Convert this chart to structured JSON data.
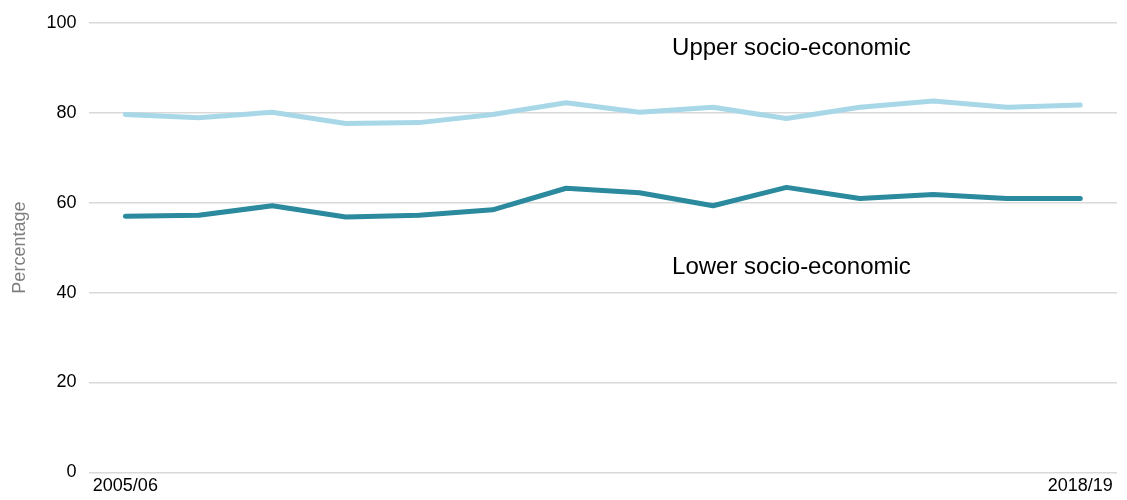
{
  "chart_data": {
    "type": "line",
    "ylabel": "Percentage",
    "categories": [
      "2005/06",
      null,
      null,
      null,
      null,
      null,
      null,
      null,
      null,
      null,
      null,
      null,
      null,
      "2018/19"
    ],
    "series": [
      {
        "name": "Upper socio-economic",
        "color": "#a8d8e8",
        "values": [
          79.6,
          78.9,
          80.1,
          77.6,
          77.8,
          79.6,
          82.2,
          80.1,
          81.2,
          78.7,
          81.2,
          82.6,
          81.2,
          81.7
        ]
      },
      {
        "name": "Lower socio-economic",
        "color": "#2b8a9e",
        "values": [
          57.0,
          57.2,
          59.3,
          56.8,
          57.2,
          58.4,
          63.2,
          62.2,
          59.3,
          63.4,
          60.9,
          61.8,
          60.9,
          60.9
        ]
      }
    ],
    "ylim": [
      0,
      100
    ],
    "yticks": [
      0,
      20,
      40,
      60,
      80,
      100
    ],
    "grid": "y",
    "legend": false,
    "marker": "none",
    "line_style": "solid"
  }
}
